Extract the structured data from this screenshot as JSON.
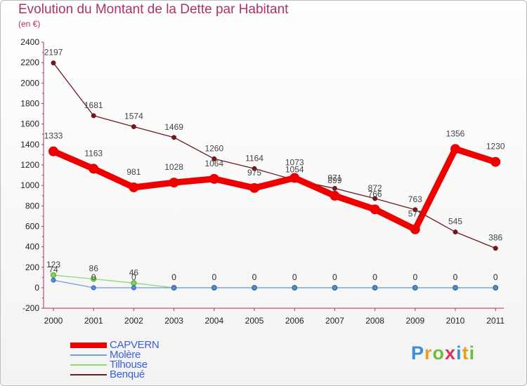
{
  "title": "Evolution du Montant de la Dette par Habitant",
  "subtitle": "(en €)",
  "chart_data": {
    "type": "line",
    "x": [
      "2000",
      "2001",
      "2002",
      "2003",
      "2004",
      "2005",
      "2006",
      "2007",
      "2008",
      "2009",
      "2010",
      "2011"
    ],
    "ylim": [
      -200,
      2400
    ],
    "yticks": [
      -200,
      0,
      200,
      400,
      600,
      800,
      1000,
      1200,
      1400,
      1600,
      1800,
      2000,
      2200,
      2400
    ],
    "grid": false,
    "series": [
      {
        "name": "Benqué",
        "color": "#6e1b1b",
        "values": [
          2197,
          1681,
          1574,
          1469,
          1260,
          1164,
          1054,
          971,
          872,
          763,
          545,
          386
        ]
      },
      {
        "name": "Tilhouse",
        "color": "#90d870",
        "values": [
          123,
          86,
          46,
          0,
          0,
          0,
          0,
          0,
          0,
          0,
          0,
          0
        ]
      },
      {
        "name": "Molère",
        "color": "#6f9be0",
        "values": [
          74,
          0,
          0,
          0,
          0,
          0,
          0,
          0,
          0,
          0,
          0,
          0
        ]
      },
      {
        "name": "CAPVERN",
        "color": "#ee0000",
        "values": [
          1333,
          1163,
          981,
          1028,
          1064,
          975,
          1073,
          899,
          766,
          571,
          1356,
          1230
        ]
      }
    ]
  },
  "legend": [
    {
      "name": "CAPVERN",
      "color": "#ee0000"
    },
    {
      "name": "Molère",
      "color": "#6f9be0"
    },
    {
      "name": "Tilhouse",
      "color": "#90d870"
    },
    {
      "name": "Benqué",
      "color": "#6e1b1b"
    }
  ],
  "logo": {
    "letters": [
      "P",
      "r",
      "o",
      "x",
      "i",
      "t",
      "i"
    ],
    "colors": [
      "#3b8fd8",
      "#e8a020",
      "#6cbf3a",
      "#e03060",
      "#3b8fd8",
      "#e8a020",
      "#6cbf3a"
    ]
  }
}
